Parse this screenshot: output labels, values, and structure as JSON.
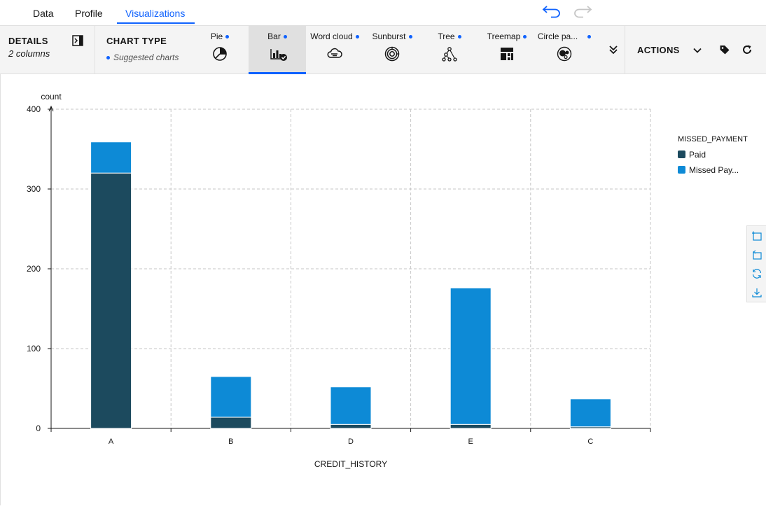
{
  "tabs": [
    {
      "label": "Data"
    },
    {
      "label": "Profile"
    },
    {
      "label": "Visualizations"
    }
  ],
  "details": {
    "title": "DETAILS",
    "subtitle": "2 columns"
  },
  "chart_type": {
    "title": "CHART TYPE",
    "suggested_label": "Suggested charts"
  },
  "chart_options": [
    {
      "label": "Pie",
      "icon": "pie-chart-icon",
      "suggested": true
    },
    {
      "label": "Bar",
      "icon": "bar-chart-icon",
      "suggested": true,
      "selected": true
    },
    {
      "label": "Word cloud",
      "icon": "word-cloud-icon",
      "suggested": true
    },
    {
      "label": "Sunburst",
      "icon": "sunburst-icon",
      "suggested": true
    },
    {
      "label": "Tree",
      "icon": "tree-icon",
      "suggested": true
    },
    {
      "label": "Treemap",
      "icon": "treemap-icon",
      "suggested": true
    },
    {
      "label": "Circle pa...",
      "icon": "circle-packing-icon",
      "suggested": true
    }
  ],
  "actions": {
    "title": "ACTIONS"
  },
  "colors": {
    "accent": "#0f62fe",
    "paid": "#1c4a5e",
    "missed": "#0d8ad6"
  },
  "chart_data": {
    "type": "bar",
    "stacked": true,
    "categories": [
      "A",
      "B",
      "D",
      "E",
      "C"
    ],
    "series": [
      {
        "name": "Paid",
        "values": [
          320,
          14,
          5,
          5,
          2
        ],
        "color": "#1c4a5e"
      },
      {
        "name": "Missed Pay...",
        "values": [
          39,
          51,
          47,
          171,
          35
        ],
        "color": "#0d8ad6"
      }
    ],
    "xlabel": "CREDIT_HISTORY",
    "ylabel": "count",
    "ylim": [
      0,
      400
    ],
    "yticks": [
      0,
      100,
      200,
      300,
      400
    ],
    "grid": true,
    "legend_title": "MISSED_PAYMENT",
    "legend_position": "top-right"
  }
}
